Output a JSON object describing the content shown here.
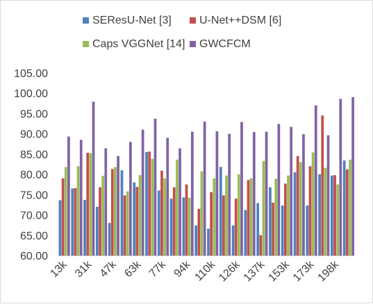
{
  "chart_data": {
    "type": "bar",
    "title": "",
    "xlabel": "",
    "ylabel": "",
    "ylim": [
      60,
      105
    ],
    "yticks": [
      "60.00",
      "65.00",
      "70.00",
      "75.00",
      "80.00",
      "85.00",
      "90.00",
      "95.00",
      "100.00",
      "105.00"
    ],
    "grid": false,
    "legend_position": "top",
    "categories": [
      "13k",
      "",
      "31k",
      "",
      "47k",
      "",
      "63k",
      "",
      "77k",
      "",
      "94k",
      "",
      "110k",
      "",
      "126k",
      "",
      "137k",
      "",
      "153k",
      "",
      "173k",
      "",
      "198k",
      ""
    ],
    "x_tick_labels": [
      "13k",
      "31k",
      "47k",
      "63k",
      "77k",
      "94k",
      "110k",
      "126k",
      "137k",
      "153k",
      "173k",
      "198k"
    ],
    "series": [
      {
        "name": "SEResU-Net [3]",
        "color": "#4f81bd",
        "values": [
          73.6,
          76.5,
          73.7,
          72.0,
          68.0,
          81.0,
          78.0,
          85.5,
          76.0,
          74.0,
          74.3,
          67.4,
          66.6,
          81.8,
          67.4,
          71.2,
          72.9,
          76.8,
          72.3,
          80.5,
          72.3,
          80.0,
          79.7,
          83.4
        ]
      },
      {
        "name": "U-Net++DSM [6]",
        "color": "#c0504d",
        "values": [
          79.0,
          76.6,
          85.3,
          76.8,
          81.3,
          74.8,
          76.9,
          85.6,
          80.9,
          76.8,
          77.5,
          71.5,
          75.6,
          74.8,
          74.0,
          78.6,
          65.0,
          73.0,
          77.7,
          84.5,
          82.0,
          94.5,
          79.8,
          81.2
        ]
      },
      {
        "name": "Caps VGGNet [14]",
        "color": "#9bbb59",
        "values": [
          81.8,
          82.0,
          85.2,
          79.6,
          81.8,
          75.8,
          79.8,
          83.8,
          79.0,
          83.6,
          74.2,
          80.7,
          79.0,
          79.7,
          80.0,
          79.0,
          83.3,
          78.9,
          79.7,
          83.0,
          85.4,
          81.6,
          77.5,
          83.6
        ]
      },
      {
        "name": "GWCFCM",
        "color": "#8064a2",
        "values": [
          89.3,
          88.5,
          97.9,
          86.4,
          84.5,
          88.0,
          91.0,
          93.7,
          89.0,
          86.4,
          90.5,
          93.0,
          90.6,
          90.0,
          92.9,
          90.4,
          90.5,
          92.4,
          91.7,
          89.9,
          97.0,
          89.6,
          98.6,
          99.0
        ]
      }
    ]
  }
}
